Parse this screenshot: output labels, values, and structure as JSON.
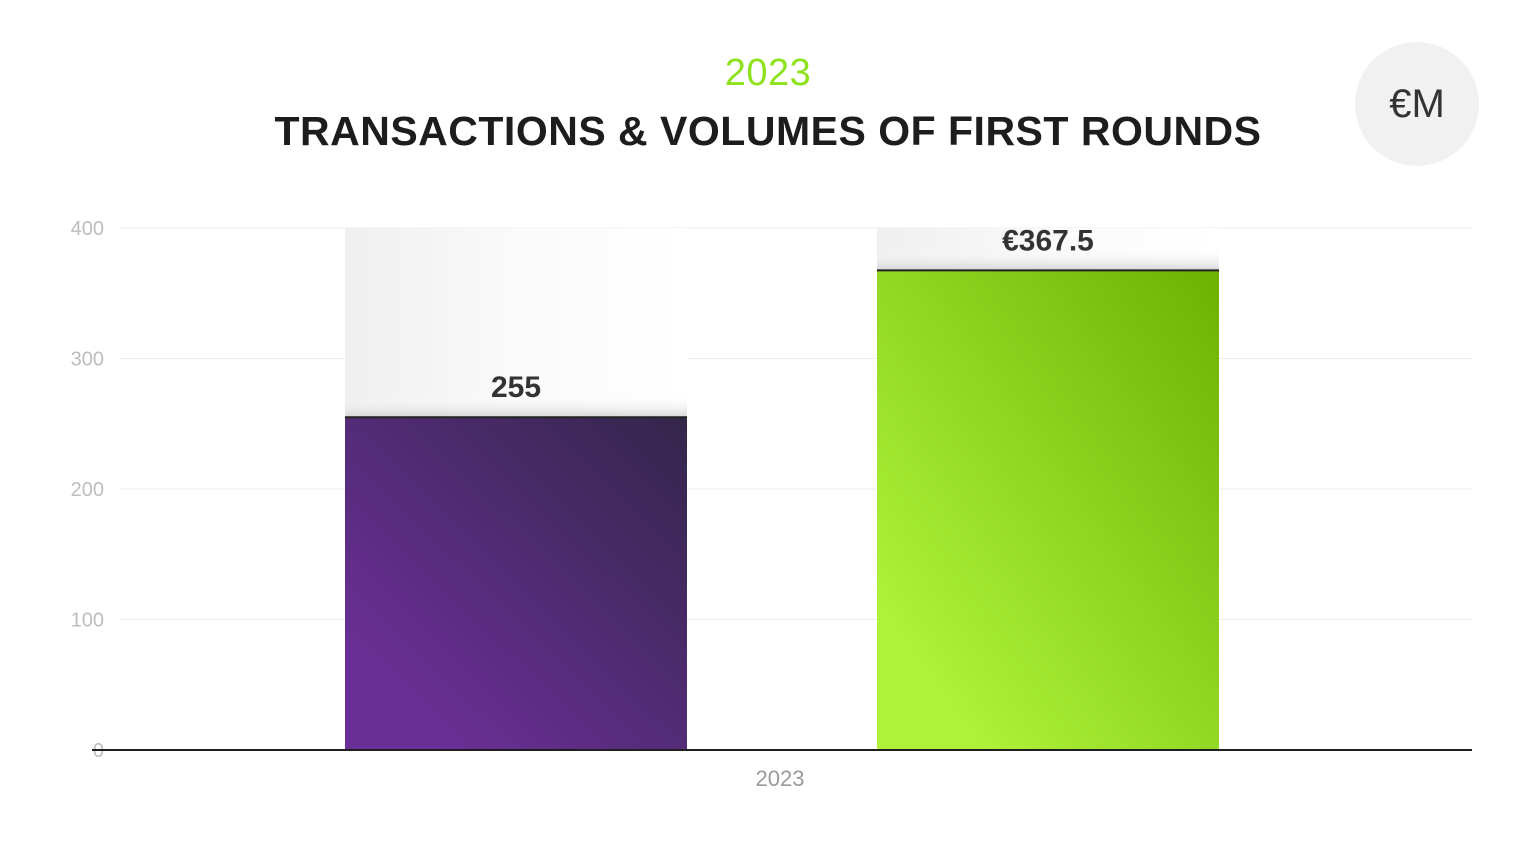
{
  "header": {
    "subtitle": "2023",
    "title": "TRANSACTIONS & VOLUMES OF FIRST ROUNDS",
    "unit_badge": "€M"
  },
  "colors": {
    "accent_green": "#8ee21c",
    "purple_light": "#6a2f96",
    "purple_dark": "#33264a",
    "green_light": "#aef23a",
    "green_dark": "#6bb203",
    "axis_text": "#bdbdbd",
    "label_text": "#333333"
  },
  "chart_data": {
    "type": "bar",
    "title": "TRANSACTIONS & VOLUMES OF FIRST ROUNDS",
    "subtitle": "2023",
    "categories": [
      "2023"
    ],
    "series": [
      {
        "values": [
          255
        ],
        "label": "255",
        "gradient": [
          "#6a2f96",
          "#33264a"
        ]
      },
      {
        "values": [
          367.5
        ],
        "label": "€367.5",
        "gradient": [
          "#aef23a",
          "#6bb203"
        ]
      }
    ],
    "ylim": [
      0,
      400
    ],
    "yticks": [
      "0",
      "100",
      "200",
      "300",
      "400"
    ],
    "grid": true,
    "legend": "none"
  }
}
